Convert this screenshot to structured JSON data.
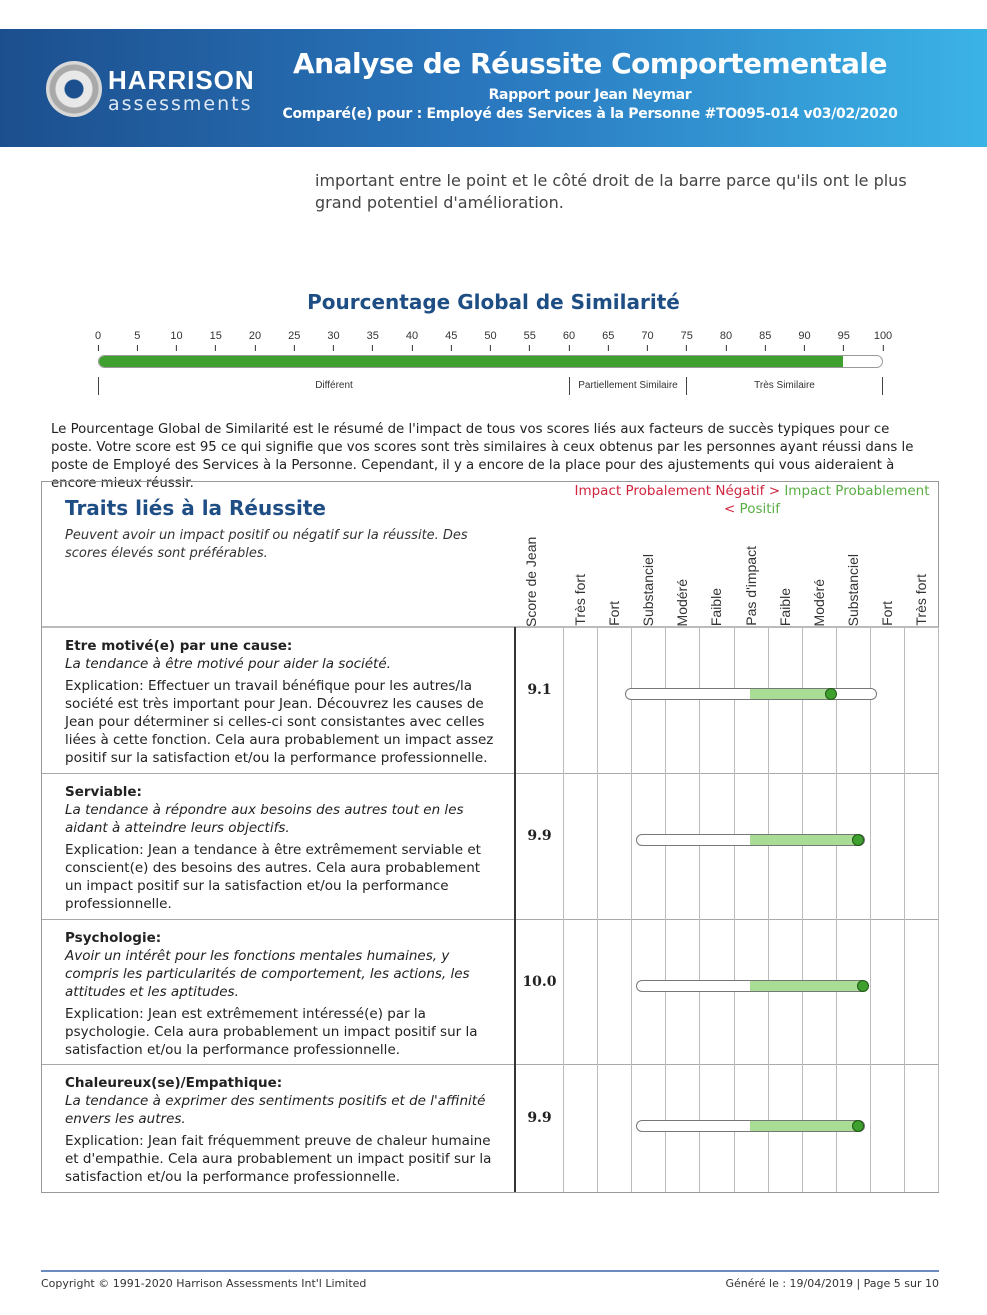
{
  "header": {
    "logo_top": "HARRISON",
    "logo_bottom": "assessments",
    "title": "Analyse de Réussite Comportementale",
    "report_for": "Rapport pour Jean Neymar",
    "compared": "Comparé(e) pour : Employé des Services à la Personne #TO095-014 v03/02/2020"
  },
  "intro": "important entre le point et le côté droit de la barre parce qu'ils ont le plus grand potentiel d'amélioration.",
  "global": {
    "title": "Pourcentage Global de Similarité",
    "ticks": [
      "0",
      "5",
      "10",
      "15",
      "20",
      "25",
      "30",
      "35",
      "40",
      "45",
      "50",
      "55",
      "60",
      "65",
      "70",
      "75",
      "80",
      "85",
      "90",
      "95",
      "100"
    ],
    "value": 95,
    "zones": [
      "Différent",
      "Partiellement Similaire",
      "Très Similaire"
    ]
  },
  "description": "Le Pourcentage Global de Similarité est le résumé de l'impact de tous vos scores liés aux facteurs de succès typiques pour ce poste. Votre score est 95 ce qui signifie que vos scores sont très similaires à ceux obtenus par les personnes ayant réussi dans le poste de Employé des Services à la Personne. Cependant, il y a encore de la place pour des ajustements qui vous aideraient à encore mieux réussir.",
  "table": {
    "title": "Traits liés à la Réussite",
    "subtitle": "Peuvent avoir un impact positif ou négatif sur la réussite. Des scores élevés sont préférables.",
    "legend_neg": "Impact Probalement Négatif",
    "legend_gt": ">",
    "legend_pos": "Impact Probablement",
    "legend_lt": "<",
    "legend_pos2": "Positif",
    "score_header": "Score de Jean",
    "columns": [
      "Très fort",
      "Fort",
      "Substanciel",
      "Modéré",
      "Faible",
      "Pas d'impact",
      "Faible",
      "Modéré",
      "Substanciel",
      "Fort",
      "Très fort"
    ],
    "rows": [
      {
        "name": "Etre motivé(e) par une cause:",
        "definition": "La tendance à être motivé pour aider la société.",
        "explanation": "Explication: Effectuer un travail bénéfique pour les autres/la société est très important pour Jean. Découvrez les causes de Jean pour déterminer si celles-ci sont consistantes avec celles liées à cette fonction. Cela aura probablement un impact assez positif sur la satisfaction et/ou la performance professionnelle.",
        "score": "9.1"
      },
      {
        "name": "Serviable:",
        "definition": "La tendance à répondre aux besoins des autres tout en les aidant à atteindre leurs objectifs.",
        "explanation": "Explication: Jean a tendance à être extrêmement serviable et conscient(e) des besoins des autres. Cela aura probablement un impact positif sur la satisfaction et/ou la performance professionnelle.",
        "score": "9.9"
      },
      {
        "name": "Psychologie:",
        "definition": "Avoir un intérêt pour les fonctions mentales humaines, y compris les particularités de comportement, les actions, les attitudes et les aptitudes.",
        "explanation": "Explication: Jean est extrêmement intéressé(e) par la psychologie. Cela aura probablement un impact positif sur la satisfaction et/ou la performance professionnelle.",
        "score": "10.0"
      },
      {
        "name": "Chaleureux(se)/Empathique:",
        "definition": "La tendance à exprimer des sentiments positifs et de l'affinité envers les autres.",
        "explanation": "Explication: Jean fait fréquemment preuve de chaleur humaine et d'empathie. Cela aura probablement un impact positif sur la satisfaction et/ou la performance professionnelle.",
        "score": "9.9"
      }
    ]
  },
  "footer": {
    "copyright": "Copyright © 1991-2020 Harrison Assessments Int'l Limited",
    "generated": "Généré le : 19/04/2019 | Page 5 sur 10"
  },
  "colors": {
    "header_start": "#1c4f8e",
    "header_end": "#3bb3e6",
    "title_blue": "#1f4e85",
    "bar_green": "#3f9f2f",
    "light_green": "#a9dc95",
    "negative": "#d0263f",
    "positive": "#5aae45"
  }
}
